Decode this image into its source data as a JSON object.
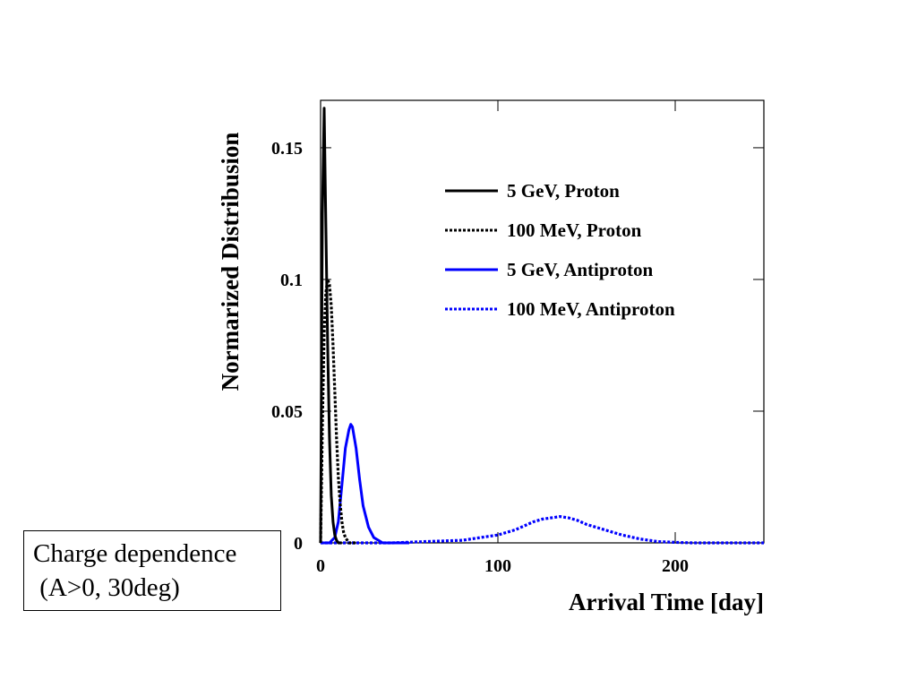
{
  "chart_data": {
    "type": "line",
    "xlabel": "Arrival Time [day]",
    "ylabel": "Normarized Distribusion",
    "xlim": [
      0,
      250
    ],
    "ylim": [
      0,
      0.168
    ],
    "xticks": [
      0,
      100,
      200
    ],
    "yticks": [
      0,
      0.05,
      0.1,
      0.15
    ],
    "ytick_labels": [
      "0",
      "0.05",
      "0.1",
      "0.15"
    ],
    "grid": false,
    "legend_position": "top-right",
    "series": [
      {
        "name": "5 GeV, Proton",
        "color": "#000000",
        "style": "solid",
        "x": [
          0,
          1,
          2,
          3,
          4,
          5,
          6,
          7,
          8,
          9,
          10,
          12
        ],
        "y": [
          0.0,
          0.125,
          0.165,
          0.12,
          0.075,
          0.04,
          0.018,
          0.008,
          0.003,
          0.001,
          0.0,
          0.0
        ]
      },
      {
        "name": "100 MeV, Proton",
        "color": "#000000",
        "style": "dotted",
        "x": [
          0,
          1,
          2,
          3,
          4,
          5,
          6,
          7,
          8,
          9,
          10,
          11,
          12,
          13,
          14,
          16,
          20
        ],
        "y": [
          0.0,
          0.045,
          0.08,
          0.095,
          0.1,
          0.098,
          0.09,
          0.075,
          0.058,
          0.04,
          0.025,
          0.015,
          0.008,
          0.004,
          0.002,
          0.0,
          0.0
        ]
      },
      {
        "name": "5 GeV, Antiproton",
        "color": "#0000ff",
        "style": "solid",
        "x": [
          0,
          5,
          8,
          10,
          12,
          14,
          16,
          17,
          18,
          20,
          22,
          24,
          27,
          30,
          35,
          40,
          50
        ],
        "y": [
          0.0,
          0.0,
          0.002,
          0.008,
          0.022,
          0.036,
          0.043,
          0.045,
          0.044,
          0.036,
          0.024,
          0.014,
          0.006,
          0.002,
          0.0,
          0.0,
          0.0
        ]
      },
      {
        "name": "100 MeV, Antiproton",
        "color": "#0000ff",
        "style": "dotted",
        "x": [
          0,
          40,
          60,
          80,
          90,
          100,
          110,
          120,
          125,
          130,
          135,
          140,
          145,
          150,
          160,
          170,
          180,
          190,
          200,
          210,
          250
        ],
        "y": [
          0.0,
          0.0,
          0.0005,
          0.001,
          0.002,
          0.003,
          0.005,
          0.008,
          0.009,
          0.0095,
          0.01,
          0.0095,
          0.0085,
          0.007,
          0.005,
          0.003,
          0.0015,
          0.0005,
          0.0002,
          0.0,
          0.0
        ]
      }
    ]
  },
  "note": {
    "line1": "Charge dependence",
    "line2": " (A>0, 30deg)"
  }
}
